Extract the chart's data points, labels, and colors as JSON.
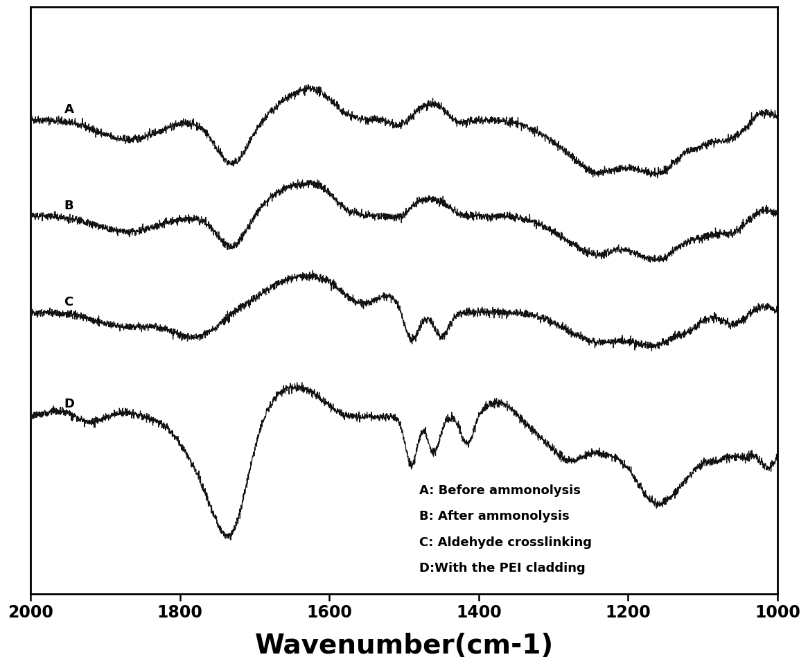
{
  "title": "",
  "xlabel": "Wavenumber(cm-1)",
  "ylabel": "",
  "xlim": [
    1000,
    2000
  ],
  "ylim": [
    -2.8,
    4.5
  ],
  "xticks": [
    2000,
    1800,
    1600,
    1400,
    1200,
    1000
  ],
  "background_color": "#ffffff",
  "line_color": "#111111",
  "legend_labels": [
    "A: Before ammonolysis",
    "B: After ammonolysis",
    "C: Aldehyde crosslinking",
    "D:With the PEI cladding"
  ],
  "curve_labels": [
    "A",
    "B",
    "C",
    "D"
  ],
  "curve_offsets": [
    3.1,
    1.9,
    0.7,
    -0.6
  ],
  "noise_level": 0.025,
  "seed": 42
}
